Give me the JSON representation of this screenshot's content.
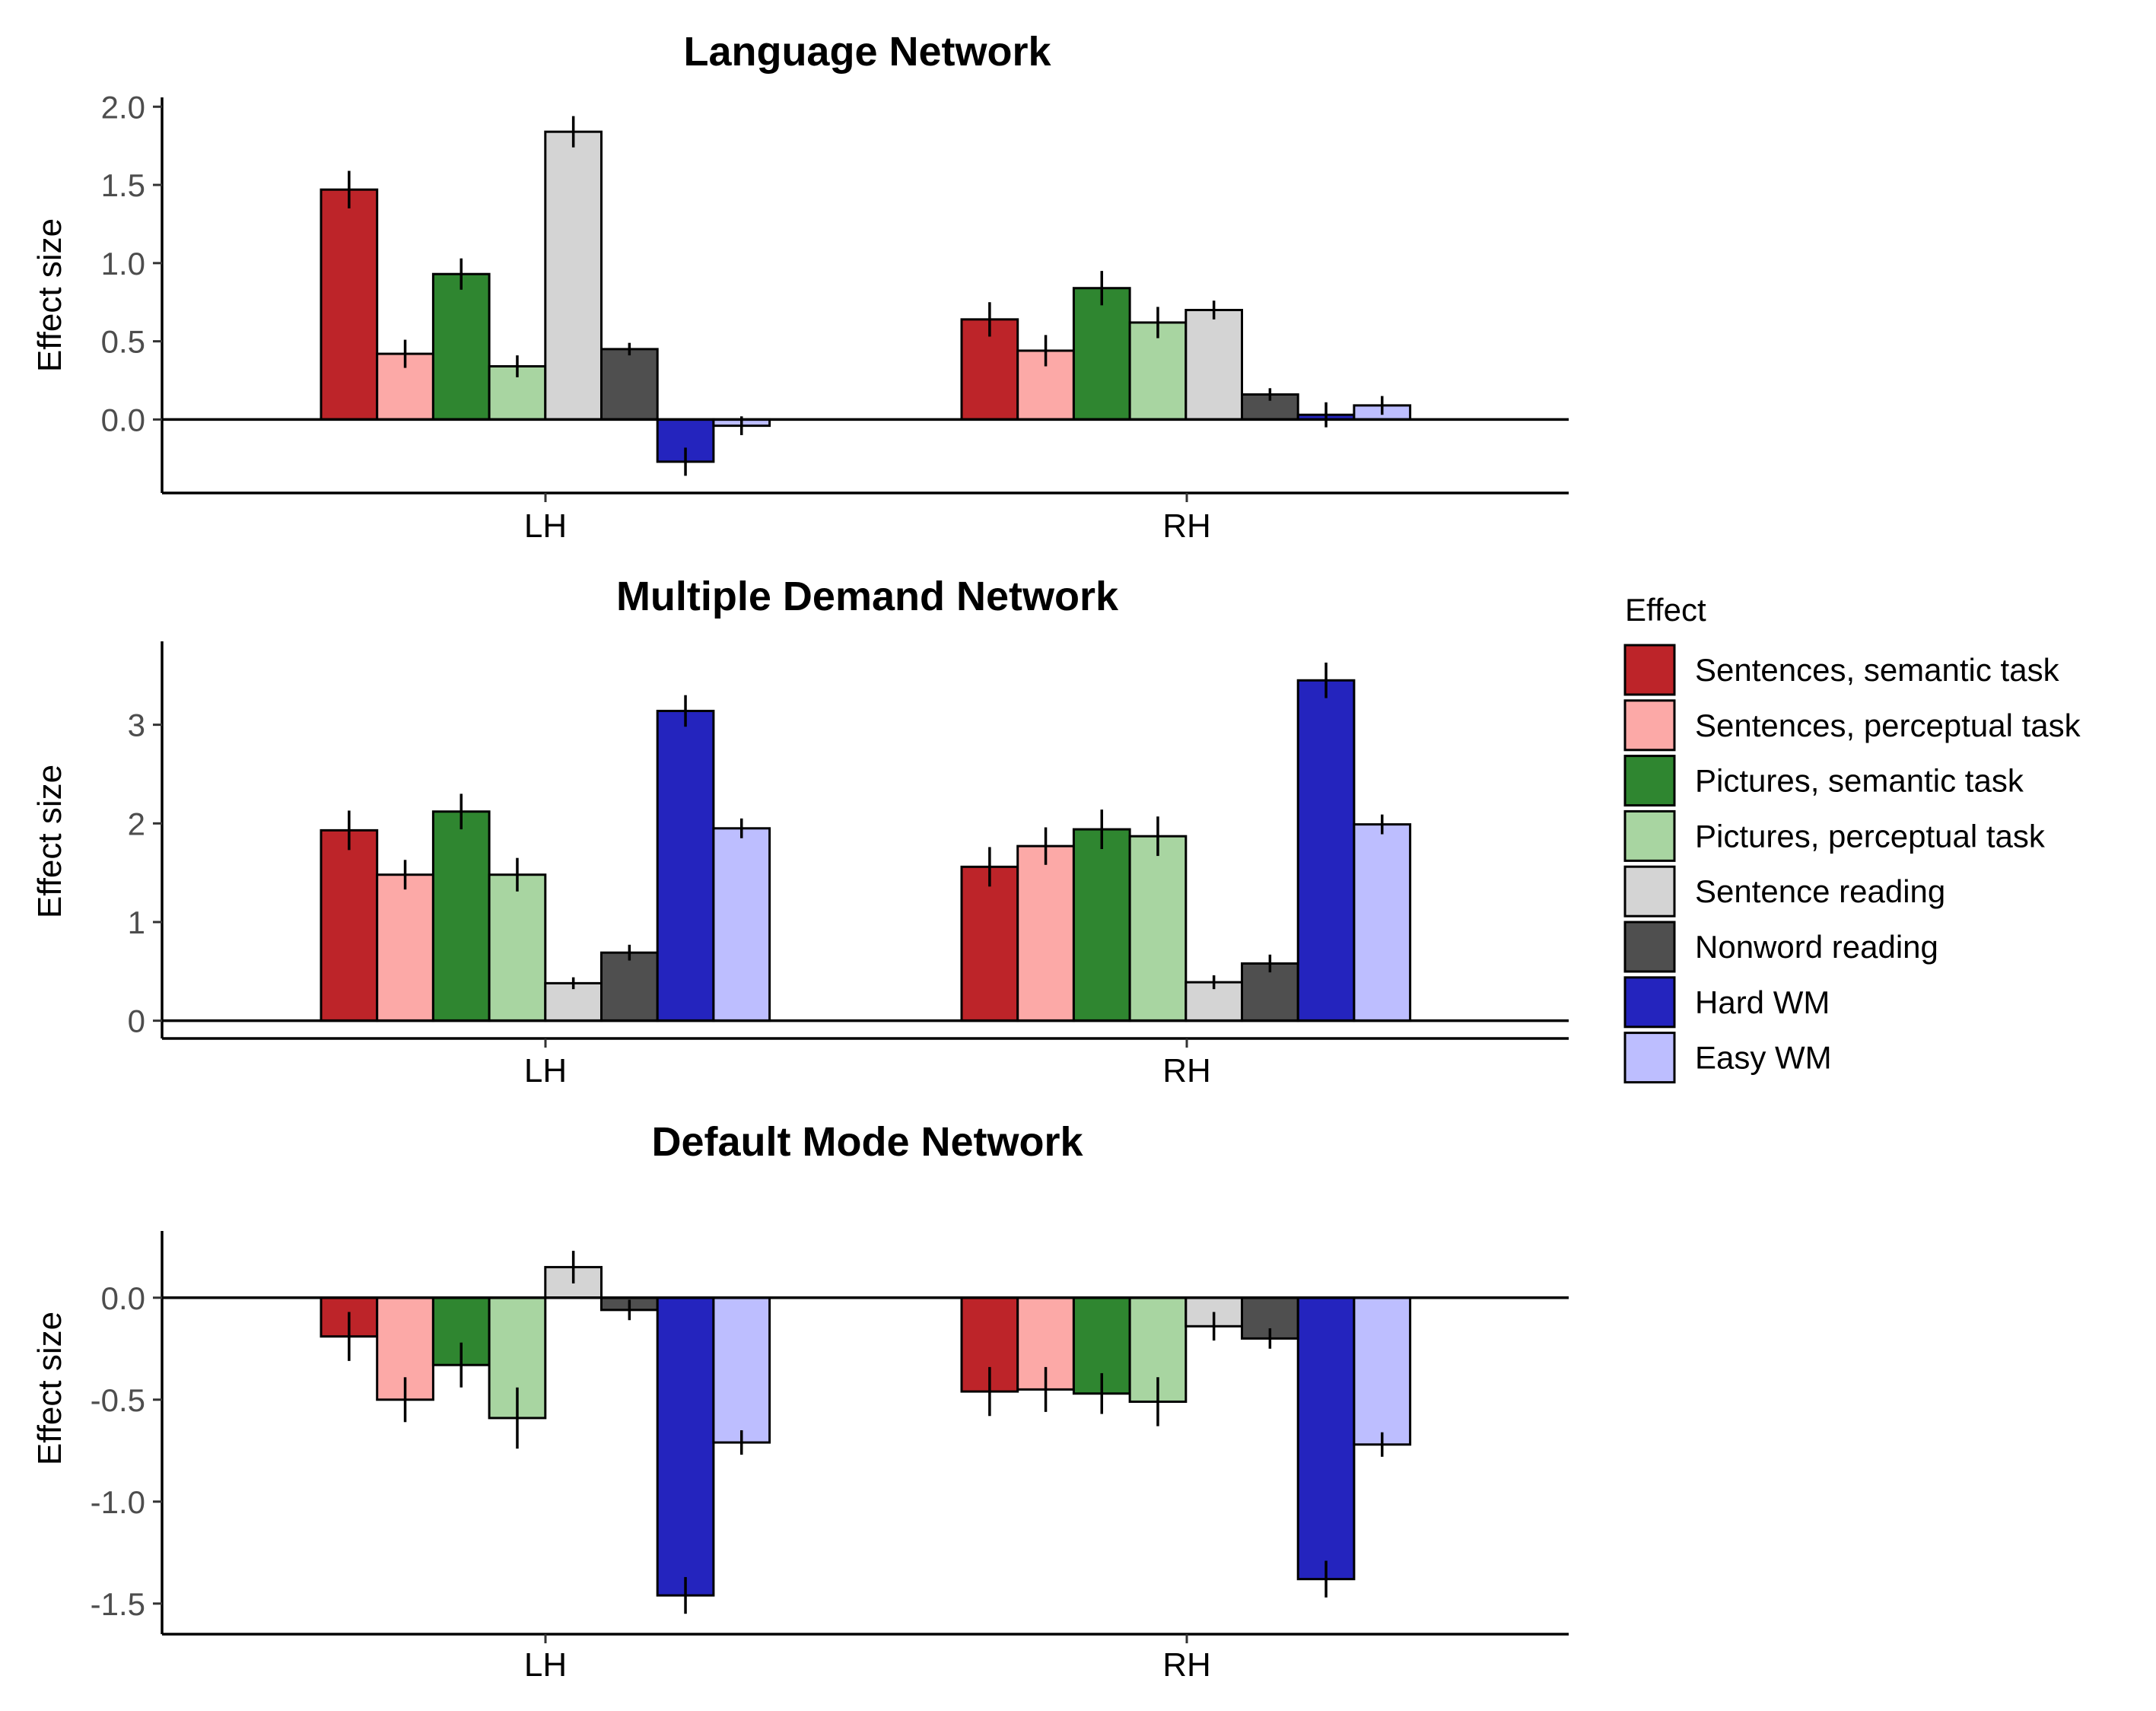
{
  "chart_data": [
    {
      "type": "bar",
      "title": "Language Network",
      "xlabel": "",
      "ylabel": "Effect size",
      "categories": [
        "LH",
        "RH"
      ],
      "ylim": [
        -0.47,
        2.05
      ],
      "yticks": [
        0.0,
        0.5,
        1.0,
        1.5,
        2.0
      ],
      "ytick_labels": [
        "0.0",
        "0.5",
        "1.0",
        "1.5",
        "2.0"
      ],
      "series": [
        {
          "name": "Sentences, semantic task",
          "values": [
            1.47,
            0.64
          ],
          "errors": [
            0.12,
            0.11
          ]
        },
        {
          "name": "Sentences, perceptual task",
          "values": [
            0.42,
            0.44
          ],
          "errors": [
            0.09,
            0.1
          ]
        },
        {
          "name": "Pictures, semantic task",
          "values": [
            0.93,
            0.84
          ],
          "errors": [
            0.1,
            0.11
          ]
        },
        {
          "name": "Pictures, perceptual task",
          "values": [
            0.34,
            0.62
          ],
          "errors": [
            0.07,
            0.1
          ]
        },
        {
          "name": "Sentence reading",
          "values": [
            1.84,
            0.7
          ],
          "errors": [
            0.1,
            0.06
          ]
        },
        {
          "name": "Nonword reading",
          "values": [
            0.45,
            0.16
          ],
          "errors": [
            0.04,
            0.04
          ]
        },
        {
          "name": "Hard WM",
          "values": [
            -0.27,
            0.03
          ],
          "errors": [
            0.09,
            0.08
          ]
        },
        {
          "name": "Easy WM",
          "values": [
            -0.04,
            0.09
          ],
          "errors": [
            0.06,
            0.06
          ]
        }
      ]
    },
    {
      "type": "bar",
      "title": "Multiple Demand Network",
      "xlabel": "",
      "ylabel": "Effect size",
      "categories": [
        "LH",
        "RH"
      ],
      "ylim": [
        -0.18,
        3.83
      ],
      "yticks": [
        0,
        1,
        2,
        3
      ],
      "ytick_labels": [
        "0",
        "1",
        "2",
        "3"
      ],
      "series": [
        {
          "name": "Sentences, semantic task",
          "values": [
            1.93,
            1.56
          ],
          "errors": [
            0.2,
            0.2
          ]
        },
        {
          "name": "Sentences, perceptual task",
          "values": [
            1.48,
            1.77
          ],
          "errors": [
            0.15,
            0.19
          ]
        },
        {
          "name": "Pictures, semantic task",
          "values": [
            2.12,
            1.94
          ],
          "errors": [
            0.18,
            0.2
          ]
        },
        {
          "name": "Pictures, perceptual task",
          "values": [
            1.48,
            1.87
          ],
          "errors": [
            0.17,
            0.2
          ]
        },
        {
          "name": "Sentence reading",
          "values": [
            0.38,
            0.39
          ],
          "errors": [
            0.06,
            0.07
          ]
        },
        {
          "name": "Nonword reading",
          "values": [
            0.69,
            0.58
          ],
          "errors": [
            0.08,
            0.09
          ]
        },
        {
          "name": "Hard WM",
          "values": [
            3.14,
            3.45
          ],
          "errors": [
            0.16,
            0.18
          ]
        },
        {
          "name": "Easy WM",
          "values": [
            1.95,
            1.99
          ],
          "errors": [
            0.1,
            0.1
          ]
        }
      ]
    },
    {
      "type": "bar",
      "title": "Default Mode Network",
      "xlabel": "",
      "ylabel": "Effect size",
      "categories": [
        "LH",
        "RH"
      ],
      "ylim": [
        -1.65,
        0.32
      ],
      "yticks": [
        -1.5,
        -1.0,
        -0.5,
        0.0
      ],
      "ytick_labels": [
        "-1.5",
        "-1.0",
        "-0.5",
        "0.0"
      ],
      "series": [
        {
          "name": "Sentences, semantic task",
          "values": [
            -0.19,
            -0.46
          ],
          "errors": [
            0.12,
            0.12
          ]
        },
        {
          "name": "Sentences, perceptual task",
          "values": [
            -0.5,
            -0.45
          ],
          "errors": [
            0.11,
            0.11
          ]
        },
        {
          "name": "Pictures, semantic task",
          "values": [
            -0.33,
            -0.47
          ],
          "errors": [
            0.11,
            0.1
          ]
        },
        {
          "name": "Pictures, perceptual task",
          "values": [
            -0.59,
            -0.51
          ],
          "errors": [
            0.15,
            0.12
          ]
        },
        {
          "name": "Sentence reading",
          "values": [
            0.15,
            -0.14
          ],
          "errors": [
            0.08,
            0.07
          ]
        },
        {
          "name": "Nonword reading",
          "values": [
            -0.06,
            -0.2
          ],
          "errors": [
            0.05,
            0.05
          ]
        },
        {
          "name": "Hard WM",
          "values": [
            -1.46,
            -1.38
          ],
          "errors": [
            0.09,
            0.09
          ]
        },
        {
          "name": "Easy WM",
          "values": [
            -0.71,
            -0.72
          ],
          "errors": [
            0.06,
            0.06
          ]
        }
      ]
    }
  ],
  "legend": {
    "title": "Effect",
    "placement": "right",
    "items": [
      {
        "label": "Sentences, semantic task",
        "color": "#BD2429"
      },
      {
        "label": "Sentences, perceptual task",
        "color": "#FCA9A7"
      },
      {
        "label": "Pictures, semantic task",
        "color": "#2F8630"
      },
      {
        "label": "Pictures, perceptual task",
        "color": "#A8D5A1"
      },
      {
        "label": "Sentence reading",
        "color": "#D4D4D4"
      },
      {
        "label": "Nonword reading",
        "color": "#4F4F4F"
      },
      {
        "label": "Hard WM",
        "color": "#2424BE"
      },
      {
        "label": "Easy WM",
        "color": "#BDBEFF"
      }
    ]
  }
}
